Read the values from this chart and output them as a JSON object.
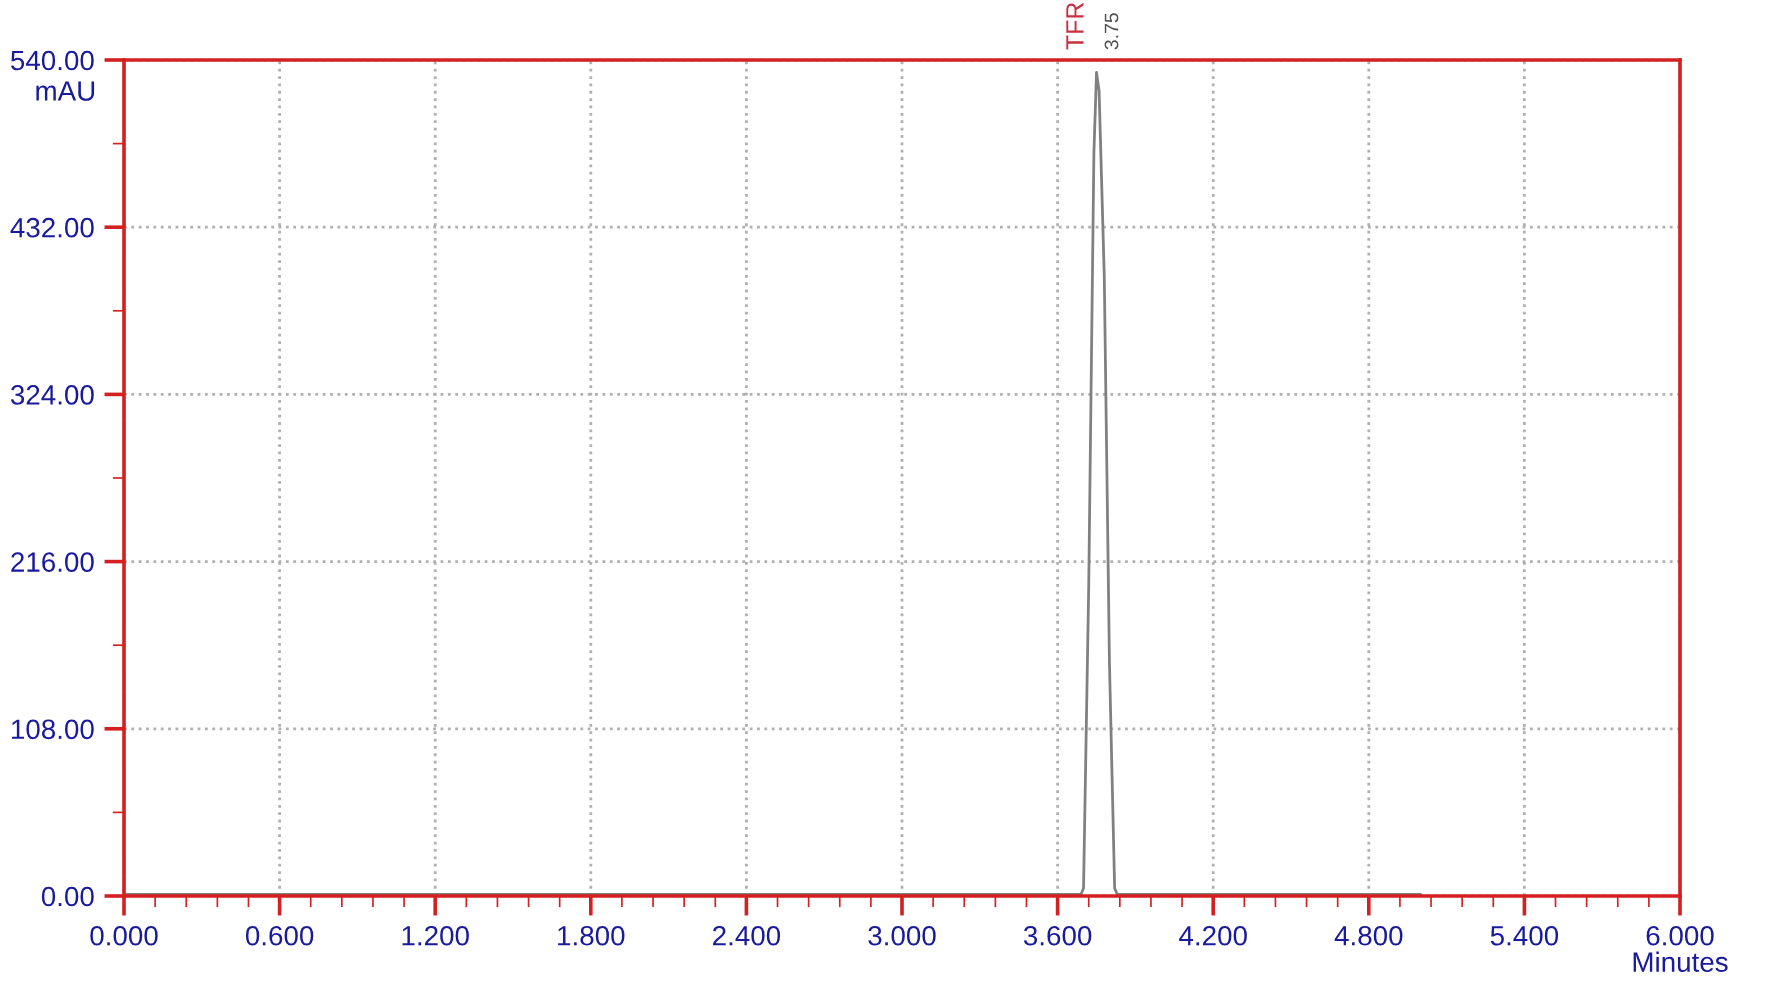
{
  "chart_data": {
    "type": "line",
    "xlabel": "Minutes",
    "ylabel": "mAU",
    "x": [
      0,
      3.69,
      3.7,
      3.72,
      3.74,
      3.75,
      3.76,
      3.78,
      3.8,
      3.82,
      3.83,
      5.0
    ],
    "series": [
      {
        "color": "#808080",
        "values": [
          1,
          1,
          5,
          200,
          480,
          532,
          520,
          400,
          150,
          5,
          1,
          1
        ]
      }
    ],
    "annotations": [
      {
        "text": "TFR",
        "x": 3.75,
        "y": 532
      },
      {
        "text": "3.75",
        "x": 3.75,
        "y": 532
      }
    ],
    "xlim": [
      0,
      6
    ],
    "xticks": [
      {
        "value": 0,
        "label": "0.000"
      },
      {
        "value": 0.6,
        "label": "0.600"
      },
      {
        "value": 1.2,
        "label": "1.200"
      },
      {
        "value": 1.8,
        "label": "1.800"
      },
      {
        "value": 2.4,
        "label": "2.400"
      },
      {
        "value": 3.0,
        "label": "3.000"
      },
      {
        "value": 3.6,
        "label": "3.600"
      },
      {
        "value": 4.2,
        "label": "4.200"
      },
      {
        "value": 4.8,
        "label": "4.800"
      },
      {
        "value": 5.4,
        "label": "5.400"
      },
      {
        "value": 6.0,
        "label": "6.000"
      }
    ],
    "ylim": [
      0,
      540
    ],
    "yticks": [
      {
        "value": 0,
        "label": "0.00"
      },
      {
        "value": 108,
        "label": "108.00"
      },
      {
        "value": 216,
        "label": "216.00"
      },
      {
        "value": 324,
        "label": "324.00"
      },
      {
        "value": 432,
        "label": "432.00"
      },
      {
        "value": 540,
        "label": "540.00"
      }
    ],
    "grid": true,
    "legend": false,
    "marker": "none",
    "line_style": "solid"
  }
}
